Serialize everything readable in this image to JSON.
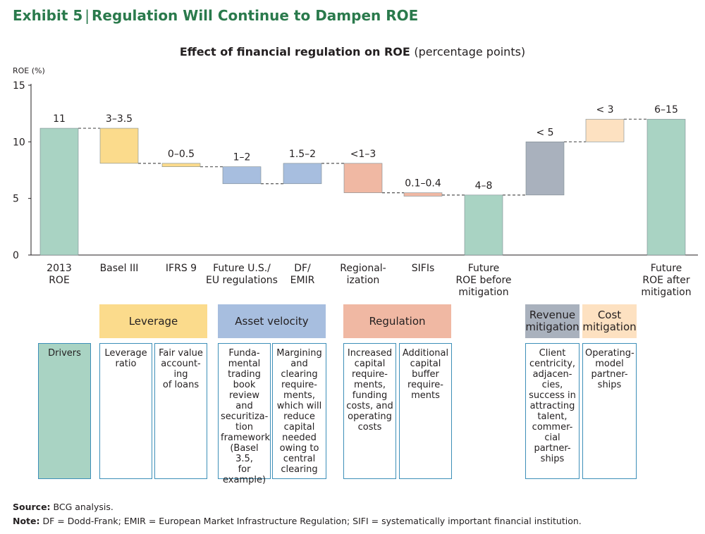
{
  "exhibit": {
    "label": "Exhibit 5",
    "separator": "|",
    "title": "Regulation Will Continue to Dampen ROE"
  },
  "colors": {
    "green": "#a9d3c3",
    "yellow": "#fbdb8c",
    "blue": "#a7bedf",
    "salmon": "#f0b8a3",
    "gray": "#a9b1bd",
    "peach": "#fde1c1",
    "title_green": "#2a7a4c",
    "box_border": "#3d8fb8"
  },
  "chart_data": {
    "type": "bar",
    "subtype": "waterfall",
    "title": "Effect of financial regulation on ROE",
    "title_suffix": "(percentage points)",
    "ylabel": "ROE (%)",
    "ylim": [
      0,
      15
    ],
    "yticks": [
      0,
      5,
      10,
      15
    ],
    "grid": false,
    "categories": [
      "2013\nROE",
      "Basel III",
      "IFRS 9",
      "Future U.S./\nEU regulations",
      "DF/\nEMIR",
      "Regional-\nization",
      "SIFIs",
      "Future\nROE before\nmitigation",
      "",
      "",
      "Future\nROE after\nmitigation"
    ],
    "bars": [
      {
        "low": 0,
        "high": 11.2,
        "label": "11",
        "color": "green"
      },
      {
        "low": 8.1,
        "high": 11.2,
        "label": "3–3.5",
        "color": "yellow"
      },
      {
        "low": 7.8,
        "high": 8.1,
        "label": "0–0.5",
        "color": "yellow"
      },
      {
        "low": 6.3,
        "high": 7.8,
        "label": "1–2",
        "color": "blue"
      },
      {
        "low": 6.3,
        "high": 8.1,
        "label": "1.5–2",
        "color": "blue"
      },
      {
        "low": 5.5,
        "high": 8.1,
        "label": "<1–3",
        "color": "salmon"
      },
      {
        "low": 5.2,
        "high": 5.5,
        "label": "0.1–0.4",
        "color": "salmon"
      },
      {
        "low": 0,
        "high": 5.3,
        "label": "4–8",
        "color": "green"
      },
      {
        "low": 5.3,
        "high": 10,
        "label": "< 5",
        "color": "gray"
      },
      {
        "low": 10,
        "high": 12,
        "label": "< 3",
        "color": "peach"
      },
      {
        "low": 0,
        "high": 12,
        "label": "6–15",
        "color": "green"
      }
    ]
  },
  "groups": [
    {
      "label": "Leverage",
      "color": "yellow"
    },
    {
      "label": "Asset velocity",
      "color": "blue"
    },
    {
      "label": "Regulation",
      "color": "salmon"
    },
    {
      "label": "Revenue\nmitigation",
      "color": "gray"
    },
    {
      "label": "Cost\nmitigation",
      "color": "peach"
    }
  ],
  "drivers": {
    "label": "Drivers",
    "items": [
      "Leverage\nratio",
      "Fair value\naccount-\ning\nof loans",
      "Funda-\nmental\ntrading\nbook\nreview\nand\nsecuritiza-\ntion\nframework\n(Basel 3.5,\nfor\nexample)",
      "Margining\nand\nclearing\nrequire-\nments,\nwhich will\nreduce\ncapital\nneeded\nowing to\ncentral\nclearing",
      "Increased\ncapital\nrequire-\nments,\nfunding\ncosts, and\noperating\ncosts",
      "Additional\ncapital\nbuffer\nrequire-\nments",
      "Client\ncentricity,\nadjacen-\ncies,\nsuccess in\nattracting\ntalent,\ncommer-\ncial\npartner-\nships",
      "Operating-\nmodel\npartner-\nships"
    ]
  },
  "footer": {
    "source_label": "Source:",
    "source_text": "BCG analysis.",
    "note_label": "Note:",
    "note_text": "DF = Dodd-Frank; EMIR = European Market Infrastructure Regulation; SIFI = systematically important financial institution."
  }
}
